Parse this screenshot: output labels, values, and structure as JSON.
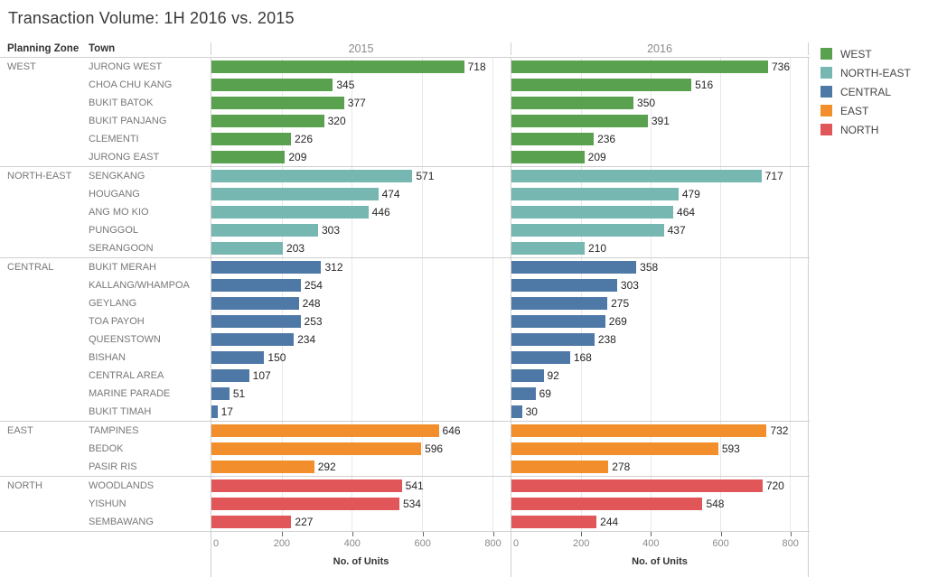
{
  "title": "Transaction Volume: 1H 2016 vs. 2015",
  "columns": {
    "zone": "Planning Zone",
    "town": "Town",
    "year1": "2015",
    "year2": "2016"
  },
  "axis": {
    "label": "No. of Units",
    "ticks": [
      0,
      200,
      400,
      600,
      800
    ],
    "max": 850
  },
  "legend": [
    {
      "label": "WEST",
      "color": "#59a14f"
    },
    {
      "label": "NORTH-EAST",
      "color": "#76b7b2"
    },
    {
      "label": "CENTRAL",
      "color": "#4e79a7"
    },
    {
      "label": "EAST",
      "color": "#f28e2b"
    },
    {
      "label": "NORTH",
      "color": "#e15759"
    }
  ],
  "chart_data": {
    "type": "bar",
    "orientation": "horizontal",
    "title": "Transaction Volume: 1H 2016 vs. 2015",
    "panels": [
      "2015",
      "2016"
    ],
    "xlabel": "No. of Units",
    "xlim": [
      0,
      850
    ],
    "xticks": [
      0,
      200,
      400,
      600,
      800
    ],
    "grid": true,
    "legend_position": "top-right",
    "groups": [
      {
        "zone": "WEST",
        "color": "#59a14f",
        "towns": [
          {
            "name": "JURONG WEST",
            "v2015": 718,
            "v2016": 736
          },
          {
            "name": "CHOA CHU KANG",
            "v2015": 345,
            "v2016": 516
          },
          {
            "name": "BUKIT BATOK",
            "v2015": 377,
            "v2016": 350
          },
          {
            "name": "BUKIT PANJANG",
            "v2015": 320,
            "v2016": 391
          },
          {
            "name": "CLEMENTI",
            "v2015": 226,
            "v2016": 236
          },
          {
            "name": "JURONG EAST",
            "v2015": 209,
            "v2016": 209
          }
        ]
      },
      {
        "zone": "NORTH-EAST",
        "color": "#76b7b2",
        "towns": [
          {
            "name": "SENGKANG",
            "v2015": 571,
            "v2016": 717
          },
          {
            "name": "HOUGANG",
            "v2015": 474,
            "v2016": 479
          },
          {
            "name": "ANG MO KIO",
            "v2015": 446,
            "v2016": 464
          },
          {
            "name": "PUNGGOL",
            "v2015": 303,
            "v2016": 437
          },
          {
            "name": "SERANGOON",
            "v2015": 203,
            "v2016": 210
          }
        ]
      },
      {
        "zone": "CENTRAL",
        "color": "#4e79a7",
        "towns": [
          {
            "name": "BUKIT MERAH",
            "v2015": 312,
            "v2016": 358
          },
          {
            "name": "KALLANG/WHAMPOA",
            "v2015": 254,
            "v2016": 303
          },
          {
            "name": "GEYLANG",
            "v2015": 248,
            "v2016": 275
          },
          {
            "name": "TOA PAYOH",
            "v2015": 253,
            "v2016": 269
          },
          {
            "name": "QUEENSTOWN",
            "v2015": 234,
            "v2016": 238
          },
          {
            "name": "BISHAN",
            "v2015": 150,
            "v2016": 168
          },
          {
            "name": "CENTRAL AREA",
            "v2015": 107,
            "v2016": 92
          },
          {
            "name": "MARINE PARADE",
            "v2015": 51,
            "v2016": 69
          },
          {
            "name": "BUKIT TIMAH",
            "v2015": 17,
            "v2016": 30
          }
        ]
      },
      {
        "zone": "EAST",
        "color": "#f28e2b",
        "towns": [
          {
            "name": "TAMPINES",
            "v2015": 646,
            "v2016": 732
          },
          {
            "name": "BEDOK",
            "v2015": 596,
            "v2016": 593
          },
          {
            "name": "PASIR RIS",
            "v2015": 292,
            "v2016": 278
          }
        ]
      },
      {
        "zone": "NORTH",
        "color": "#e15759",
        "towns": [
          {
            "name": "WOODLANDS",
            "v2015": 541,
            "v2016": 720
          },
          {
            "name": "YISHUN",
            "v2015": 534,
            "v2016": 548
          },
          {
            "name": "SEMBAWANG",
            "v2015": 227,
            "v2016": 244
          }
        ]
      }
    ]
  }
}
